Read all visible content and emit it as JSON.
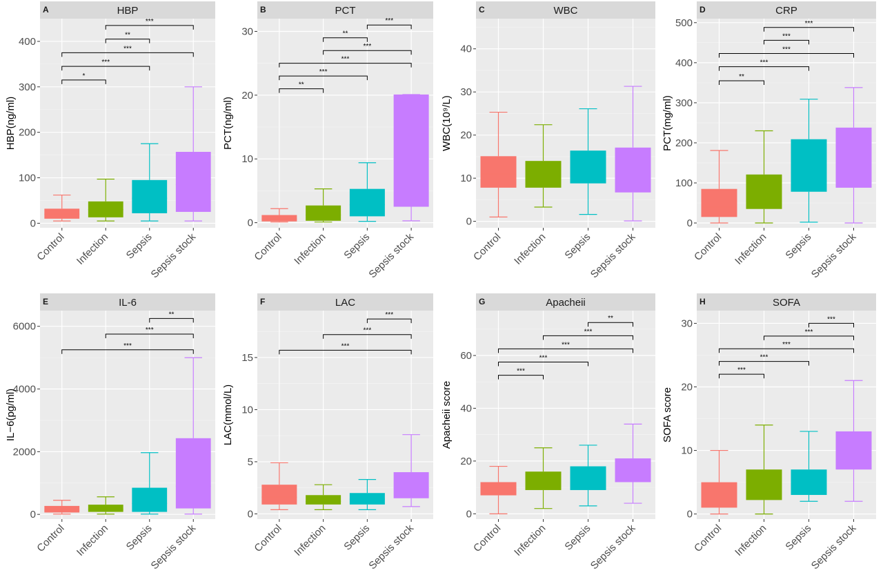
{
  "categories": [
    "Control",
    "Infection",
    "Sepsis",
    "Sepsis stock"
  ],
  "colors": [
    "#f8766d",
    "#7cae00",
    "#00bfc4",
    "#c77cff"
  ],
  "chart_data": [
    {
      "letter": "A",
      "title": "HBP",
      "type": "box",
      "ylabel": "HBP(ng/ml)",
      "ylim": [
        -10,
        450
      ],
      "yticks": [
        0,
        100,
        200,
        300,
        400
      ],
      "boxes": [
        {
          "category": "Control",
          "min": 5,
          "q1": 10,
          "median": 20,
          "q3": 32,
          "max": 62
        },
        {
          "category": "Infection",
          "min": 5,
          "q1": 13,
          "median": 30,
          "q3": 48,
          "max": 97
        },
        {
          "category": "Sepsis",
          "min": 5,
          "q1": 22,
          "median": 55,
          "q3": 95,
          "max": 175
        },
        {
          "category": "Sepsis stock",
          "min": 5,
          "q1": 25,
          "median": 85,
          "q3": 157,
          "max": 300
        }
      ],
      "comparisons": [
        {
          "from": "Control",
          "to": "Infection",
          "y": 315,
          "label": "*"
        },
        {
          "from": "Control",
          "to": "Sepsis",
          "y": 345,
          "label": "***"
        },
        {
          "from": "Control",
          "to": "Sepsis stock",
          "y": 375,
          "label": "***"
        },
        {
          "from": "Infection",
          "to": "Sepsis",
          "y": 405,
          "label": "**"
        },
        {
          "from": "Infection",
          "to": "Sepsis stock",
          "y": 435,
          "label": "***"
        }
      ]
    },
    {
      "letter": "B",
      "title": "PCT",
      "type": "box",
      "ylabel": "PCT(ng/ml)",
      "ylim": [
        -0.8,
        32
      ],
      "yticks": [
        0,
        10,
        20,
        30
      ],
      "boxes": [
        {
          "category": "Control",
          "min": 0.1,
          "q1": 0.2,
          "median": 0.6,
          "q3": 1.2,
          "max": 2.2
        },
        {
          "category": "Infection",
          "min": 0.1,
          "q1": 0.3,
          "median": 1.2,
          "q3": 2.7,
          "max": 5.3
        },
        {
          "category": "Sepsis",
          "min": 0.2,
          "q1": 1.0,
          "median": 2.8,
          "q3": 5.3,
          "max": 9.4
        },
        {
          "category": "Sepsis stock",
          "min": 0.3,
          "q1": 2.5,
          "median": 10,
          "q3": 20.1,
          "max": 20.1
        }
      ],
      "comparisons": [
        {
          "from": "Control",
          "to": "Infection",
          "y": 21,
          "label": "**"
        },
        {
          "from": "Control",
          "to": "Sepsis",
          "y": 23,
          "label": "***"
        },
        {
          "from": "Control",
          "to": "Sepsis stock",
          "y": 25,
          "label": "***"
        },
        {
          "from": "Infection",
          "to": "Sepsis stock",
          "y": 27,
          "label": "***"
        },
        {
          "from": "Infection",
          "to": "Sepsis",
          "y": 29,
          "label": "**"
        },
        {
          "from": "Sepsis",
          "to": "Sepsis stock",
          "y": 31,
          "label": "***"
        }
      ]
    },
    {
      "letter": "C",
      "title": "WBC",
      "type": "box",
      "ylabel": "WBC(10⁹/L)",
      "ylim": [
        -1.5,
        47
      ],
      "yticks": [
        0,
        10,
        20,
        30,
        40
      ],
      "boxes": [
        {
          "category": "Control",
          "min": 1.0,
          "q1": 7.8,
          "median": 11.0,
          "q3": 15.1,
          "max": 25.3
        },
        {
          "category": "Infection",
          "min": 3.3,
          "q1": 7.8,
          "median": 10.0,
          "q3": 14.0,
          "max": 22.4
        },
        {
          "category": "Sepsis",
          "min": 1.6,
          "q1": 8.8,
          "median": 12.0,
          "q3": 16.4,
          "max": 26.1
        },
        {
          "category": "Sepsis stock",
          "min": 0.1,
          "q1": 6.7,
          "median": 11.5,
          "q3": 17.1,
          "max": 31.3
        }
      ],
      "comparisons": []
    },
    {
      "letter": "D",
      "title": "CRP",
      "type": "box",
      "ylabel": "PCT(mg/ml)",
      "ylim": [
        -12,
        510
      ],
      "yticks": [
        0,
        100,
        200,
        300,
        400,
        500
      ],
      "boxes": [
        {
          "category": "Control",
          "min": 0,
          "q1": 15,
          "median": 40,
          "q3": 85,
          "max": 181
        },
        {
          "category": "Infection",
          "min": 0,
          "q1": 35,
          "median": 75,
          "q3": 121,
          "max": 230
        },
        {
          "category": "Sepsis",
          "min": 2,
          "q1": 78,
          "median": 130,
          "q3": 209,
          "max": 309
        },
        {
          "category": "Sepsis stock",
          "min": 0,
          "q1": 88,
          "median": 150,
          "q3": 238,
          "max": 338
        }
      ],
      "comparisons": [
        {
          "from": "Control",
          "to": "Infection",
          "y": 355,
          "label": "**"
        },
        {
          "from": "Control",
          "to": "Sepsis",
          "y": 390,
          "label": "***"
        },
        {
          "from": "Control",
          "to": "Sepsis stock",
          "y": 423,
          "label": "***"
        },
        {
          "from": "Infection",
          "to": "Sepsis",
          "y": 456,
          "label": "***"
        },
        {
          "from": "Infection",
          "to": "Sepsis stock",
          "y": 488,
          "label": "***"
        }
      ]
    },
    {
      "letter": "E",
      "title": "IL-6",
      "type": "box",
      "ylabel": "IL−6(pg/ml)",
      "ylim": [
        -150,
        6500
      ],
      "yticks": [
        0,
        2000,
        4000,
        6000
      ],
      "boxes": [
        {
          "category": "Control",
          "min": 10,
          "q1": 60,
          "median": 130,
          "q3": 270,
          "max": 450
        },
        {
          "category": "Infection",
          "min": 10,
          "q1": 80,
          "median": 160,
          "q3": 310,
          "max": 560
        },
        {
          "category": "Sepsis",
          "min": 10,
          "q1": 80,
          "median": 350,
          "q3": 850,
          "max": 1970
        },
        {
          "category": "Sepsis stock",
          "min": 10,
          "q1": 190,
          "median": 900,
          "q3": 2430,
          "max": 5000
        }
      ],
      "comparisons": [
        {
          "from": "Control",
          "to": "Sepsis stock",
          "y": 5250,
          "label": "***"
        },
        {
          "from": "Infection",
          "to": "Sepsis stock",
          "y": 5750,
          "label": "***"
        },
        {
          "from": "Sepsis",
          "to": "Sepsis stock",
          "y": 6250,
          "label": "**"
        }
      ]
    },
    {
      "letter": "F",
      "title": "LAC",
      "type": "box",
      "ylabel": "LAC(mmol/L)",
      "ylim": [
        -0.5,
        19.5
      ],
      "yticks": [
        0,
        5,
        10,
        15
      ],
      "boxes": [
        {
          "category": "Control",
          "min": 0.4,
          "q1": 0.9,
          "median": 1.6,
          "q3": 2.8,
          "max": 4.9
        },
        {
          "category": "Infection",
          "min": 0.4,
          "q1": 0.9,
          "median": 1.2,
          "q3": 1.8,
          "max": 2.8
        },
        {
          "category": "Sepsis",
          "min": 0.4,
          "q1": 0.9,
          "median": 1.4,
          "q3": 2.0,
          "max": 3.3
        },
        {
          "category": "Sepsis stock",
          "min": 0.7,
          "q1": 1.5,
          "median": 2.5,
          "q3": 4.0,
          "max": 7.6
        }
      ],
      "comparisons": [
        {
          "from": "Control",
          "to": "Sepsis stock",
          "y": 15.7,
          "label": "***"
        },
        {
          "from": "Infection",
          "to": "Sepsis stock",
          "y": 17.2,
          "label": "***"
        },
        {
          "from": "Sepsis",
          "to": "Sepsis stock",
          "y": 18.7,
          "label": "***"
        }
      ]
    },
    {
      "letter": "G",
      "title": "Apacheii",
      "type": "box",
      "ylabel": "Apacheii score",
      "ylim": [
        -2,
        77
      ],
      "yticks": [
        0,
        20,
        40,
        60
      ],
      "boxes": [
        {
          "category": "Control",
          "min": 0,
          "q1": 7,
          "median": 10,
          "q3": 12,
          "max": 18
        },
        {
          "category": "Infection",
          "min": 2,
          "q1": 9,
          "median": 13,
          "q3": 16,
          "max": 25
        },
        {
          "category": "Sepsis",
          "min": 3,
          "q1": 9,
          "median": 14,
          "q3": 18,
          "max": 26
        },
        {
          "category": "Sepsis stock",
          "min": 4,
          "q1": 12,
          "median": 17,
          "q3": 21,
          "max": 34
        }
      ],
      "comparisons": [
        {
          "from": "Control",
          "to": "Infection",
          "y": 52.5,
          "label": "***"
        },
        {
          "from": "Control",
          "to": "Sepsis",
          "y": 57.5,
          "label": "***"
        },
        {
          "from": "Control",
          "to": "Sepsis stock",
          "y": 62.5,
          "label": "***"
        },
        {
          "from": "Infection",
          "to": "Sepsis stock",
          "y": 67.5,
          "label": "***"
        },
        {
          "from": "Sepsis",
          "to": "Sepsis stock",
          "y": 72.5,
          "label": "**"
        }
      ]
    },
    {
      "letter": "H",
      "title": "SOFA",
      "type": "box",
      "ylabel": "SOFA score",
      "ylim": [
        -0.8,
        32
      ],
      "yticks": [
        0,
        10,
        20,
        30
      ],
      "boxes": [
        {
          "category": "Control",
          "min": 0,
          "q1": 1,
          "median": 3,
          "q3": 5,
          "max": 10
        },
        {
          "category": "Infection",
          "min": 0,
          "q1": 2.2,
          "median": 4,
          "q3": 7,
          "max": 14
        },
        {
          "category": "Sepsis",
          "min": 2,
          "q1": 3,
          "median": 5,
          "q3": 7,
          "max": 13
        },
        {
          "category": "Sepsis stock",
          "min": 2,
          "q1": 7,
          "median": 10,
          "q3": 13,
          "max": 21
        }
      ],
      "comparisons": [
        {
          "from": "Control",
          "to": "Infection",
          "y": 22.0,
          "label": "***"
        },
        {
          "from": "Control",
          "to": "Sepsis",
          "y": 24.0,
          "label": "***"
        },
        {
          "from": "Control",
          "to": "Sepsis stock",
          "y": 26.0,
          "label": "***"
        },
        {
          "from": "Infection",
          "to": "Sepsis stock",
          "y": 28.0,
          "label": "***"
        },
        {
          "from": "Sepsis",
          "to": "Sepsis stock",
          "y": 30.0,
          "label": "***"
        }
      ]
    }
  ]
}
